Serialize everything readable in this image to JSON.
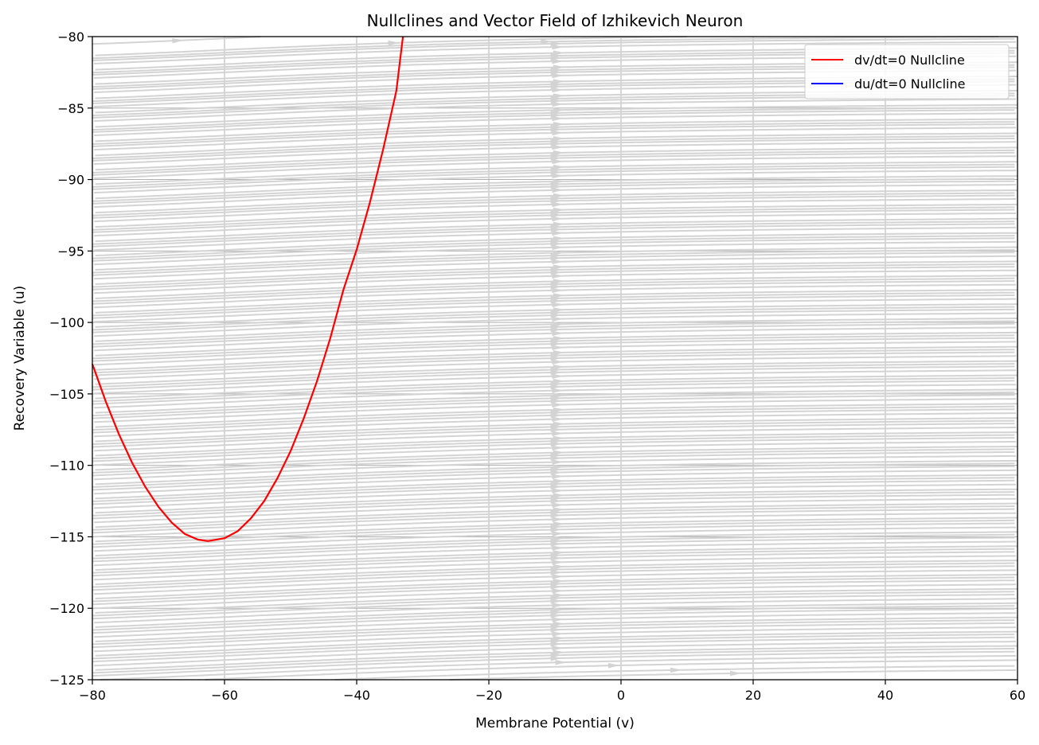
{
  "chart_data": {
    "type": "line",
    "title": "Nullclines and Vector Field of Izhikevich Neuron",
    "xlabel": "Membrane Potential (v)",
    "ylabel": "Recovery Variable (u)",
    "xlim": [
      -80,
      60
    ],
    "ylim": [
      -125,
      -80
    ],
    "xticks": [
      -80,
      -60,
      -40,
      -20,
      0,
      20,
      40,
      60
    ],
    "yticks": [
      -125,
      -120,
      -115,
      -110,
      -105,
      -100,
      -95,
      -90,
      -85,
      -80
    ],
    "xtick_labels": [
      "−80",
      "−60",
      "−40",
      "−20",
      "0",
      "20",
      "40",
      "60"
    ],
    "ytick_labels": [
      "−125",
      "−120",
      "−115",
      "−110",
      "−105",
      "−100",
      "−95",
      "−90",
      "−85",
      "−80"
    ],
    "grid": true,
    "legend_position": "top-right",
    "series": [
      {
        "name": "dv/dt=0 Nullcline",
        "color": "#ff0000",
        "x": [
          -80,
          -78,
          -76,
          -74,
          -72,
          -70,
          -68,
          -66,
          -64,
          -62.5,
          -60,
          -58,
          -56,
          -54,
          -52,
          -50,
          -48,
          -46,
          -44,
          -42,
          -40,
          -38,
          -36,
          -34,
          -33
        ],
        "y": [
          -102.9,
          -105.5,
          -107.8,
          -109.8,
          -111.5,
          -112.9,
          -114.0,
          -114.8,
          -115.2,
          -115.3,
          -115.1,
          -114.6,
          -113.7,
          -112.5,
          -110.9,
          -109.0,
          -106.7,
          -104.1,
          -101.1,
          -97.7,
          -94.9,
          -91.6,
          -87.9,
          -83.8,
          -80.0
        ]
      },
      {
        "name": "du/dt=0 Nullcline",
        "color": "#0000ff",
        "x": [],
        "y": []
      }
    ],
    "streamlines": {
      "color": "#d3d3d3",
      "description_values": "vector field of dv/dt = 0.04v^2 + 5v + 140 - u, du/dt = a(bv - u)"
    }
  }
}
